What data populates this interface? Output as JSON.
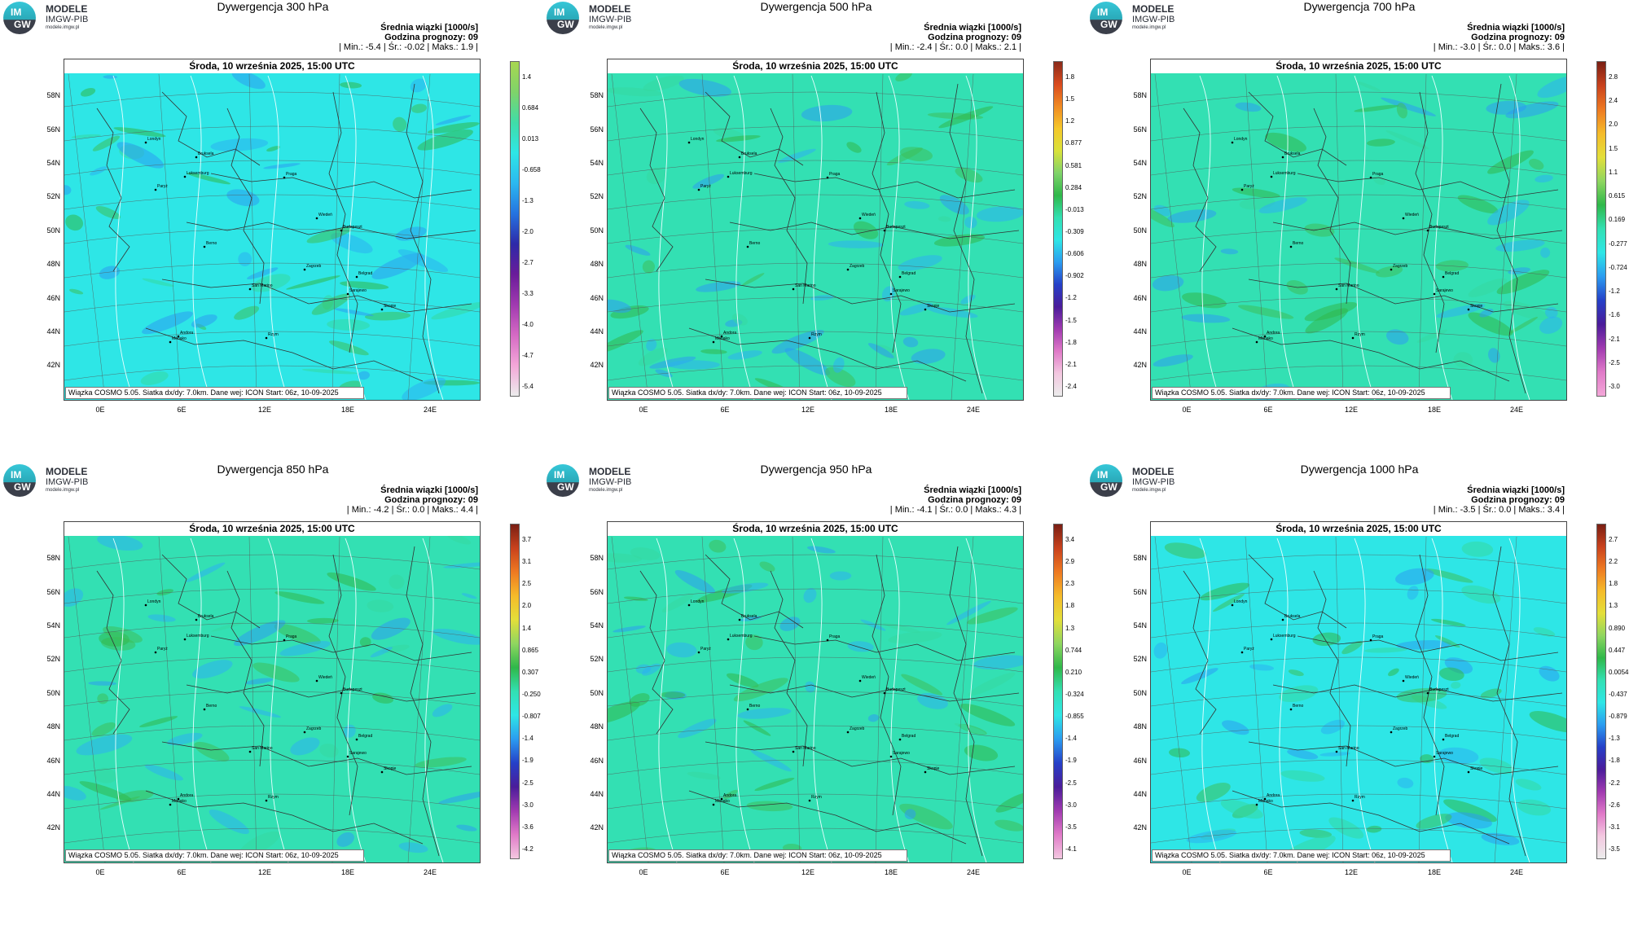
{
  "logo": {
    "line1": "MODELE",
    "line2": "IMGW-PIB",
    "line3": "modele.imgw.pl",
    "im": "IM",
    "gw": "GW"
  },
  "common": {
    "date": "Środa, 10 września 2025, 15:00 UTC",
    "stat_label": "Średnia wiązki [1000/s]",
    "forecast_hour": "Godzina prognozy: 09",
    "footer": "Wiązka COSMO 5.05. Siatka dx/dy: 7.0km. Dane wej: ICON Start: 06z, 10-09-2025",
    "lat_labels": [
      "58N",
      "56N",
      "54N",
      "52N",
      "50N",
      "48N",
      "46N",
      "44N",
      "42N"
    ],
    "lon_labels": [
      "0E",
      "6E",
      "12E",
      "18E",
      "24E"
    ]
  },
  "colors": {
    "land_fill": "#2ee6e6",
    "sea_tint": "#2fd6c6",
    "contour": "#e8ffff",
    "border": "#333333"
  },
  "panels": [
    {
      "title": "Dywergencja 300 hPa",
      "stats": "| Min.:   -5.4 | Śr.:  -0.02 | Maks.:    1.9 |",
      "base": "#2ee6e6",
      "ticks": [
        "1.4",
        "0.684",
        "0.013",
        "-0.658",
        "-1.3",
        "-2.0",
        "-2.7",
        "-3.3",
        "-4.0",
        "-4.7",
        "-5.4"
      ],
      "cbar": [
        "#a8d650",
        "#7fd36a",
        "#40dca8",
        "#2ee6e6",
        "#2bb8f0",
        "#2573e0",
        "#2d2aa8",
        "#6a1c9a",
        "#a03ab0",
        "#d56ac4",
        "#f3a7d8",
        "#ececec"
      ]
    },
    {
      "title": "Dywergencja 500 hPa",
      "stats": "| Min.:   -2.4 | Śr.:   0.0 | Maks.:    2.1 |",
      "base": "#33e0b3",
      "ticks": [
        "1.8",
        "1.5",
        "1.2",
        "0.877",
        "0.581",
        "0.284",
        "-0.013",
        "-0.309",
        "-0.606",
        "-0.902",
        "-1.2",
        "-1.5",
        "-1.8",
        "-2.1",
        "-2.4"
      ],
      "cbar": [
        "#8a2a1a",
        "#d94a1e",
        "#f08a22",
        "#f5c82a",
        "#d9e23a",
        "#7fd36a",
        "#2fb84a",
        "#33e0b3",
        "#2ee6e6",
        "#2b9cf0",
        "#2540c8",
        "#4a1c9a",
        "#a03ab0",
        "#e07ac8",
        "#f3c8e0",
        "#ececec"
      ]
    },
    {
      "title": "Dywergencja 700 hPa",
      "stats": "| Min.:   -3.0 | Śr.:   0.0 | Maks.:    3.6 |",
      "base": "#33e0b3",
      "ticks": [
        "2.8",
        "2.4",
        "2.0",
        "1.5",
        "1.1",
        "0.615",
        "0.169",
        "-0.277",
        "-0.724",
        "-1.2",
        "-1.6",
        "-2.1",
        "-2.5",
        "-3.0"
      ],
      "cbar": [
        "#7a1f14",
        "#c9421d",
        "#ee7a22",
        "#f5bb2a",
        "#e3df3a",
        "#8fd660",
        "#2fb84a",
        "#33e0b3",
        "#2ee6e6",
        "#2b9cf0",
        "#2540c8",
        "#4a1c9a",
        "#a03ab0",
        "#e07ac8",
        "#f3a7d8"
      ]
    },
    {
      "title": "Dywergencja 850 hPa",
      "stats": "| Min.:   -4.2 | Śr.:   0.0 | Maks.:    4.4 |",
      "base": "#33e0b3",
      "ticks": [
        "3.7",
        "3.1",
        "2.5",
        "2.0",
        "1.4",
        "0.865",
        "0.307",
        "-0.250",
        "-0.807",
        "-1.4",
        "-1.9",
        "-2.5",
        "-3.0",
        "-3.6",
        "-4.2"
      ],
      "cbar": [
        "#7a1f14",
        "#c9421d",
        "#ee7a22",
        "#f5bb2a",
        "#e3df3a",
        "#8fd660",
        "#2fb84a",
        "#33e0b3",
        "#2ee6e6",
        "#2b9cf0",
        "#2540c8",
        "#4a1c9a",
        "#a03ab0",
        "#e07ac8",
        "#f3c8e0"
      ]
    },
    {
      "title": "Dywergencja 950 hPa",
      "stats": "| Min.:   -4.1 | Śr.:   0.0 | Maks.:    4.3 |",
      "base": "#33e0b3",
      "ticks": [
        "3.4",
        "2.9",
        "2.3",
        "1.8",
        "1.3",
        "0.744",
        "0.210",
        "-0.324",
        "-0.855",
        "-1.4",
        "-1.9",
        "-2.5",
        "-3.0",
        "-3.5",
        "-4.1"
      ],
      "cbar": [
        "#7a1f14",
        "#c9421d",
        "#ee7a22",
        "#f5bb2a",
        "#e3df3a",
        "#8fd660",
        "#2fb84a",
        "#33e0b3",
        "#2ee6e6",
        "#2b9cf0",
        "#2540c8",
        "#4a1c9a",
        "#a03ab0",
        "#e07ac8",
        "#f3c8e0"
      ]
    },
    {
      "title": "Dywergencja 1000 hPa",
      "stats": "| Min.:   -3.5 | Śr.:   0.0 | Maks.:    3.4 |",
      "base": "#2ee6e6",
      "ticks": [
        "2.7",
        "2.2",
        "1.8",
        "1.3",
        "0.890",
        "0.447",
        "0.0054",
        "-0.437",
        "-0.879",
        "-1.3",
        "-1.8",
        "-2.2",
        "-2.6",
        "-3.1",
        "-3.5"
      ],
      "cbar": [
        "#7a1f14",
        "#c9421d",
        "#ee7a22",
        "#f5bb2a",
        "#e3df3a",
        "#8fd660",
        "#2fb84a",
        "#33e0b3",
        "#2ee6e6",
        "#2b9cf0",
        "#2540c8",
        "#4a1c9a",
        "#a03ab0",
        "#e07ac8",
        "#f3c8e0",
        "#ececec"
      ]
    }
  ],
  "cities": [
    "Londyn",
    "Bruksela",
    "Paryż",
    "Luksemburg",
    "Berno",
    "Praga",
    "Wiedeń",
    "Budapeszt",
    "Zagrzeb",
    "Belgrad",
    "San Marino",
    "Sarajewo",
    "Skopje",
    "Andora",
    "Monako",
    "Rzym"
  ]
}
